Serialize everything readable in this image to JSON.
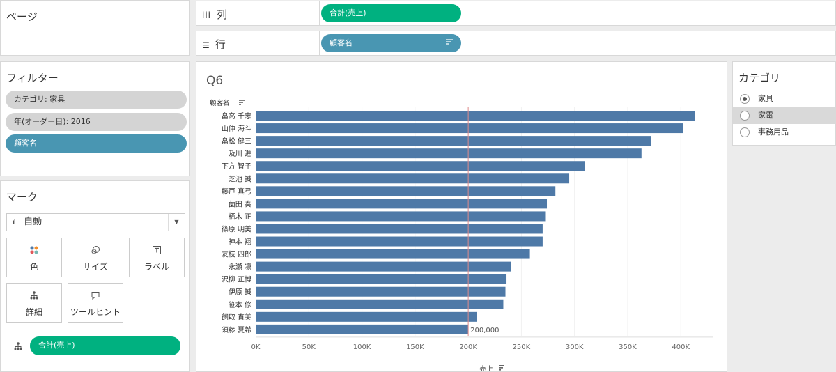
{
  "pages": {
    "title": "ページ"
  },
  "filters": {
    "title": "フィルター",
    "items": [
      "カテゴリ: 家具",
      "年(オーダー日): 2016",
      "顧客名"
    ]
  },
  "marks": {
    "title": "マーク",
    "type": "自動",
    "buttons": {
      "color": "色",
      "size": "サイズ",
      "label": "ラベル",
      "detail": "詳細",
      "tooltip": "ツールヒント"
    },
    "field_pill": "合計(売上)"
  },
  "shelves": {
    "columns": {
      "label": "列",
      "pill": "合計(売上)"
    },
    "rows": {
      "label": "行",
      "pill": "顧客名"
    }
  },
  "view": {
    "title": "Q6"
  },
  "legend": {
    "title": "カテゴリ",
    "items": [
      "家具",
      "家電",
      "事務用品"
    ],
    "selected": 0
  },
  "colors": {
    "bar": "#4e79a7",
    "ref_line": "#e08c8c",
    "green_pill": "#00b180",
    "blue_pill": "#4996b2"
  },
  "chart_data": {
    "type": "bar",
    "orientation": "horizontal",
    "ylabel": "顧客名",
    "xlabel": "売上",
    "categories": [
      "畠高 千恵",
      "山仲 海斗",
      "畠松 健三",
      "及川 進",
      "下方 智子",
      "芝池 誠",
      "藤戸 真弓",
      "薗田 奏",
      "栖木 正",
      "篠原 明美",
      "神本 翔",
      "友枝 四郎",
      "永瀬 凛",
      "沢柳 正博",
      "伊原 誠",
      "笹本 修",
      "飼取 直美",
      "須藤 夏希"
    ],
    "values": [
      413000,
      402000,
      372000,
      363000,
      310000,
      295000,
      282000,
      274000,
      273000,
      270000,
      270000,
      258000,
      240000,
      236000,
      235000,
      233000,
      208000,
      200000
    ],
    "data_labels": {
      "17": "200,000"
    },
    "reference_line": 200000,
    "xlim": [
      0,
      430000
    ],
    "xticks": [
      0,
      50000,
      100000,
      150000,
      200000,
      250000,
      300000,
      350000,
      400000
    ],
    "xtick_labels": [
      "0K",
      "50K",
      "100K",
      "150K",
      "200K",
      "250K",
      "300K",
      "350K",
      "400K"
    ],
    "grid": true
  }
}
